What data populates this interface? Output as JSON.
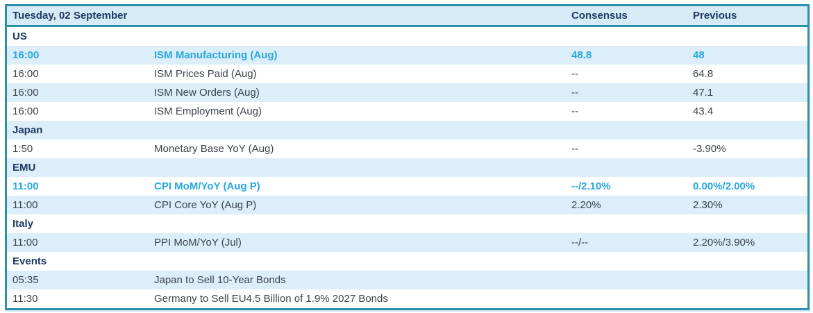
{
  "table": {
    "title": "Tuesday, 02 September",
    "columns": {
      "consensus": "Consensus",
      "previous": "Previous"
    },
    "rows": [
      {
        "type": "section",
        "label": "US"
      },
      {
        "type": "event",
        "time": "16:00",
        "event": "ISM Manufacturing (Aug)",
        "consensus": "48.8",
        "previous": "48",
        "highlight": true
      },
      {
        "type": "event",
        "time": "16:00",
        "event": "ISM Prices Paid (Aug)",
        "consensus": "--",
        "previous": "64.8",
        "highlight": false
      },
      {
        "type": "event",
        "time": "16:00",
        "event": "ISM New Orders (Aug)",
        "consensus": "--",
        "previous": "47.1",
        "highlight": false
      },
      {
        "type": "event",
        "time": "16:00",
        "event": "ISM Employment (Aug)",
        "consensus": "--",
        "previous": "43.4",
        "highlight": false
      },
      {
        "type": "section",
        "label": "Japan"
      },
      {
        "type": "event",
        "time": "1:50",
        "event": "Monetary Base YoY (Aug)",
        "consensus": "--",
        "previous": "-3.90%",
        "highlight": false
      },
      {
        "type": "section",
        "label": "EMU"
      },
      {
        "type": "event",
        "time": "11:00",
        "event": "CPI MoM/YoY (Aug P)",
        "consensus": "--/2.10%",
        "previous": "0.00%/2.00%",
        "highlight": true
      },
      {
        "type": "event",
        "time": "11:00",
        "event": "CPI Core YoY (Aug P)",
        "consensus": "2.20%",
        "previous": "2.30%",
        "highlight": false
      },
      {
        "type": "section",
        "label": "Italy"
      },
      {
        "type": "event",
        "time": "11:00",
        "event": "PPI MoM/YoY (Jul)",
        "consensus": "--/--",
        "previous": "2.20%/3.90%",
        "highlight": false
      },
      {
        "type": "section",
        "label": "Events"
      },
      {
        "type": "event",
        "time": "05:35",
        "event": "Japan to Sell 10-Year Bonds",
        "consensus": "",
        "previous": "",
        "highlight": false
      },
      {
        "type": "event",
        "time": "11:30",
        "event": "Germany to Sell EU4.5 Billion of 1.9% 2027 Bonds",
        "consensus": "",
        "previous": "",
        "highlight": false
      }
    ],
    "colors": {
      "border_teal": "#2E8FAB",
      "header_background": "#D5EBF7",
      "zebra_blue": "#DBEEF9",
      "heading_navy": "#1F3864",
      "highlight_cyan": "#29A7DF",
      "body_text": "#3C434B"
    }
  }
}
